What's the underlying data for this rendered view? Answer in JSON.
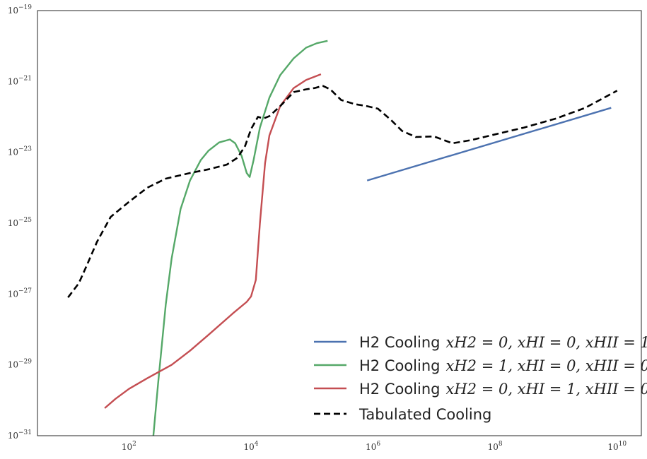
{
  "chart_data": {
    "type": "line",
    "title": "",
    "xlabel": "",
    "ylabel": "",
    "x_scale": "log",
    "y_scale": "log",
    "xlim": [
      3.16,
      25000000000.0
    ],
    "ylim": [
      1e-31,
      1e-19
    ],
    "grid": false,
    "legend_position": "lower-right",
    "x_tick_labels": [
      {
        "value": 100,
        "base": "10",
        "exp": "2"
      },
      {
        "value": 10000,
        "base": "10",
        "exp": "4"
      },
      {
        "value": 1000000,
        "base": "10",
        "exp": "6"
      },
      {
        "value": 100000000,
        "base": "10",
        "exp": "8"
      },
      {
        "value": 10000000000,
        "base": "10",
        "exp": "10"
      }
    ],
    "y_tick_labels": [
      {
        "value": 1e-31,
        "base": "10",
        "exp": "−31"
      },
      {
        "value": 1e-29,
        "base": "10",
        "exp": "−29"
      },
      {
        "value": 1e-27,
        "base": "10",
        "exp": "−27"
      },
      {
        "value": 1e-25,
        "base": "10",
        "exp": "−25"
      },
      {
        "value": 1e-23,
        "base": "10",
        "exp": "−23"
      },
      {
        "value": 1e-21,
        "base": "10",
        "exp": "−21"
      },
      {
        "value": 1e-19,
        "base": "10",
        "exp": "−19"
      }
    ],
    "series": [
      {
        "name": "H2 Cooling",
        "name_math": "x_{H2}=0, x_{HI}=0, x_{HII}=1",
        "name_math_display": "xH2 = 0, xHI = 0, xHII = 1",
        "color": "#4c72b0",
        "dash": "solid",
        "points": [
          [
            800000.0,
            1.6e-24
          ],
          [
            8000000000.0,
            1.8e-22
          ]
        ]
      },
      {
        "name": "H2 Cooling",
        "name_math": "x_{H2}=1, x_{HI}=0, x_{HII}=0",
        "name_math_display": "xH2 = 1, xHI = 0, xHII = 0",
        "color": "#55a868",
        "dash": "solid",
        "points": [
          [
            251,
            1e-31
          ],
          [
            300,
            3e-30
          ],
          [
            400,
            5e-28
          ],
          [
            500,
            1e-26
          ],
          [
            700,
            2.5e-25
          ],
          [
            1000,
            1.6e-24
          ],
          [
            1500,
            6e-24
          ],
          [
            2000,
            1.1e-23
          ],
          [
            3000,
            1.9e-23
          ],
          [
            4500,
            2.3e-23
          ],
          [
            5500,
            1.8e-23
          ],
          [
            7000,
            8e-24
          ],
          [
            8500,
            2.6e-24
          ],
          [
            9500,
            2e-24
          ],
          [
            11000,
            6e-24
          ],
          [
            14000,
            5e-23
          ],
          [
            20000,
            3.5e-22
          ],
          [
            30000,
            1.5e-21
          ],
          [
            50000,
            4.5e-21
          ],
          [
            80000,
            9e-21
          ],
          [
            120000,
            1.2e-20
          ],
          [
            180000,
            1.4e-20
          ]
        ]
      },
      {
        "name": "H2 Cooling",
        "name_math": "x_{H2}=0, x_{HI}=1, x_{HII}=0",
        "name_math_display": "xH2 = 0, xHI = 1, xHII = 0",
        "color": "#c44e52",
        "dash": "solid",
        "points": [
          [
            40,
            6e-31
          ],
          [
            60,
            1.1e-30
          ],
          [
            100,
            2.1e-30
          ],
          [
            200,
            4.2e-30
          ],
          [
            500,
            1e-29
          ],
          [
            1000,
            2.5e-29
          ],
          [
            2000,
            7e-29
          ],
          [
            5000,
            2.8e-28
          ],
          [
            8500,
            6e-28
          ],
          [
            10000,
            8.5e-28
          ],
          [
            12000,
            2.5e-27
          ],
          [
            14000,
            1e-25
          ],
          [
            17000,
            5e-24
          ],
          [
            20000,
            3e-23
          ],
          [
            30000,
            2e-22
          ],
          [
            50000,
            6.5e-22
          ],
          [
            80000,
            1.1e-21
          ],
          [
            140000,
            1.6e-21
          ]
        ]
      },
      {
        "name": "Tabulated Cooling",
        "color": "#000000",
        "dash": "dashed",
        "points": [
          [
            10,
            8e-28
          ],
          [
            15,
            2e-27
          ],
          [
            20,
            6e-27
          ],
          [
            30,
            3e-26
          ],
          [
            50,
            1.5e-25
          ],
          [
            100,
            4e-25
          ],
          [
            200,
            1e-24
          ],
          [
            400,
            1.8e-24
          ],
          [
            1000,
            2.6e-24
          ],
          [
            2000,
            3.3e-24
          ],
          [
            4000,
            4.5e-24
          ],
          [
            6000,
            7e-24
          ],
          [
            8000,
            1.5e-23
          ],
          [
            10000,
            4.5e-23
          ],
          [
            13000,
            1e-22
          ],
          [
            16000,
            9e-23
          ],
          [
            20000,
            1.05e-22
          ],
          [
            30000,
            2e-22
          ],
          [
            50000,
            5e-22
          ],
          [
            80000,
            6e-22
          ],
          [
            110000,
            6.5e-22
          ],
          [
            150000,
            7.5e-22
          ],
          [
            200000,
            6e-22
          ],
          [
            300000,
            3e-22
          ],
          [
            500000,
            2.3e-22
          ],
          [
            800000,
            2e-22
          ],
          [
            1200000,
            1.7e-22
          ],
          [
            2000000,
            8e-23
          ],
          [
            3000000,
            4e-23
          ],
          [
            5000000,
            2.7e-23
          ],
          [
            10000000,
            2.8e-23
          ],
          [
            20000000,
            1.8e-23
          ],
          [
            40000000,
            2.2e-23
          ],
          [
            100000000,
            3.2e-23
          ],
          [
            300000000,
            5e-23
          ],
          [
            1000000000,
            9e-23
          ],
          [
            3000000000,
            1.8e-22
          ],
          [
            10000000000,
            5.5e-22
          ]
        ]
      }
    ]
  }
}
